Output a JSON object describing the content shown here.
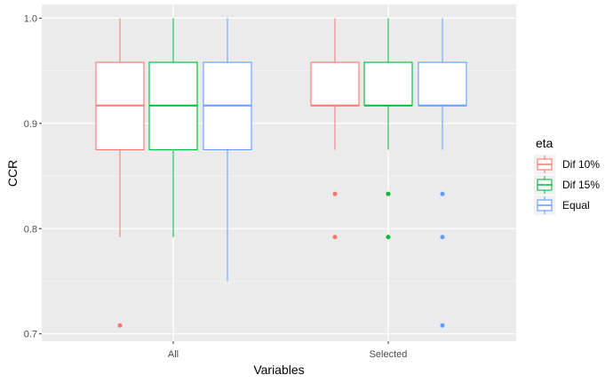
{
  "chart_data": {
    "type": "boxplot",
    "xlabel": "Variables",
    "ylabel": "CCR",
    "categories": [
      "All",
      "Selected"
    ],
    "ylim": [
      0.693,
      1.013
    ],
    "yticks": [
      0.7,
      0.8,
      0.9,
      1.0
    ],
    "ytick_labels": [
      "0.7",
      "0.8",
      "0.9",
      "1.0"
    ],
    "grid": true,
    "legend": {
      "title": "eta",
      "position": "right"
    },
    "series": [
      {
        "name": "Dif 10%",
        "color": "#F8766D",
        "boxes": [
          {
            "category": "All",
            "min": 0.792,
            "q1": 0.875,
            "median": 0.917,
            "q3": 0.958,
            "max": 1.0,
            "outliers": [
              0.708
            ]
          },
          {
            "category": "Selected",
            "min": 0.875,
            "q1": 0.917,
            "median": 0.917,
            "q3": 0.958,
            "max": 1.0,
            "outliers": [
              0.833,
              0.792
            ]
          }
        ]
      },
      {
        "name": "Dif 15%",
        "color": "#00BA38",
        "boxes": [
          {
            "category": "All",
            "min": 0.792,
            "q1": 0.875,
            "median": 0.917,
            "q3": 0.958,
            "max": 1.0,
            "outliers": []
          },
          {
            "category": "Selected",
            "min": 0.875,
            "q1": 0.917,
            "median": 0.917,
            "q3": 0.958,
            "max": 1.0,
            "outliers": [
              0.833,
              0.792
            ]
          }
        ]
      },
      {
        "name": "Equal",
        "color": "#619CFF",
        "boxes": [
          {
            "category": "All",
            "min": 0.75,
            "q1": 0.875,
            "median": 0.917,
            "q3": 0.958,
            "max": 1.0,
            "outliers": []
          },
          {
            "category": "Selected",
            "min": 0.875,
            "q1": 0.917,
            "median": 0.917,
            "q3": 0.958,
            "max": 1.0,
            "outliers": [
              0.833,
              0.792,
              0.708
            ]
          }
        ]
      }
    ]
  }
}
